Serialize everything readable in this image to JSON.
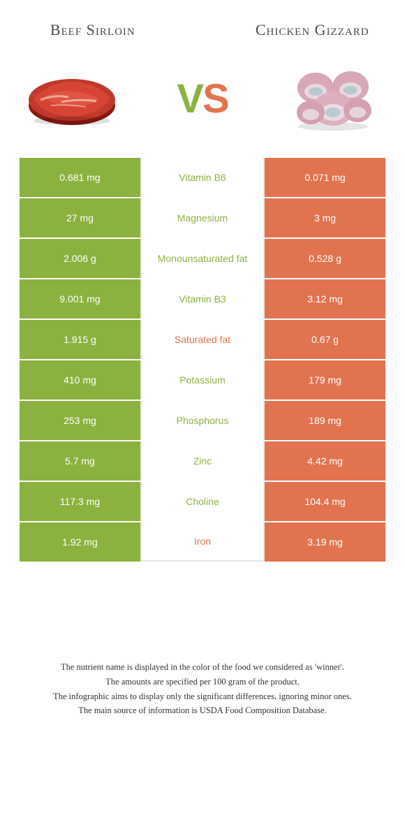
{
  "header": {
    "left_title": "Beef Sirloin",
    "right_title": "Chicken Gizzard",
    "vs_v": "V",
    "vs_s": "S"
  },
  "colors": {
    "left_bg": "#8bb23f",
    "right_bg": "#e2734f",
    "left_label": "#8bb23f",
    "right_label": "#e2734f"
  },
  "rows": [
    {
      "left": "0.681 mg",
      "label": "Vitamin B6",
      "right": "0.071 mg",
      "winner": "left"
    },
    {
      "left": "27 mg",
      "label": "Magnesium",
      "right": "3 mg",
      "winner": "left"
    },
    {
      "left": "2.006 g",
      "label": "Monounsaturated fat",
      "right": "0.528 g",
      "winner": "left"
    },
    {
      "left": "9.001 mg",
      "label": "Vitamin B3",
      "right": "3.12 mg",
      "winner": "left"
    },
    {
      "left": "1.915 g",
      "label": "Saturated fat",
      "right": "0.67 g",
      "winner": "right"
    },
    {
      "left": "410 mg",
      "label": "Potassium",
      "right": "179 mg",
      "winner": "left"
    },
    {
      "left": "253 mg",
      "label": "Phosphorus",
      "right": "189 mg",
      "winner": "left"
    },
    {
      "left": "5.7 mg",
      "label": "Zinc",
      "right": "4.42 mg",
      "winner": "left"
    },
    {
      "left": "117.3 mg",
      "label": "Choline",
      "right": "104.4 mg",
      "winner": "left"
    },
    {
      "left": "1.92 mg",
      "label": "Iron",
      "right": "3.19 mg",
      "winner": "right"
    }
  ],
  "footnotes": {
    "line1": "The nutrient name is displayed in the color of the food we considered as 'winner'.",
    "line2": "The amounts are specified per 100 gram of the product.",
    "line3": "The infographic aims to display only the significant differences, ignoring minor ones.",
    "line4": "The main source of information is USDA Food Composition Database."
  }
}
